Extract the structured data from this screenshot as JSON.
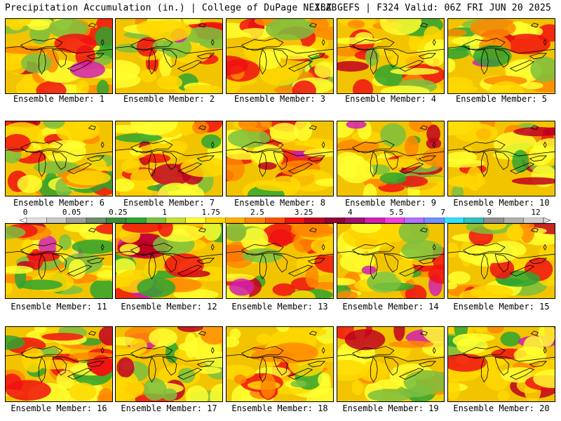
{
  "header": {
    "title_left": "Precipitation Accumulation (in.) | College of DuPage NEXLAB",
    "title_right": "18Z GEFS | F324 Valid: 06Z FRI JUN 20 2025"
  },
  "panels": [
    {
      "label": "Ensemble Member: 1"
    },
    {
      "label": "Ensemble Member: 2"
    },
    {
      "label": "Ensemble Member: 3"
    },
    {
      "label": "Ensemble Member: 4"
    },
    {
      "label": "Ensemble Member: 5"
    },
    {
      "label": "Ensemble Member: 6"
    },
    {
      "label": "Ensemble Member: 7"
    },
    {
      "label": "Ensemble Member: 8"
    },
    {
      "label": "Ensemble Member: 9"
    },
    {
      "label": "Ensemble Member: 10"
    },
    {
      "label": "Ensemble Member: 11"
    },
    {
      "label": "Ensemble Member: 12"
    },
    {
      "label": "Ensemble Member: 13"
    },
    {
      "label": "Ensemble Member: 14"
    },
    {
      "label": "Ensemble Member: 15"
    },
    {
      "label": "Ensemble Member: 16"
    },
    {
      "label": "Ensemble Member: 17"
    },
    {
      "label": "Ensemble Member: 18"
    },
    {
      "label": "Ensemble Member: 19"
    },
    {
      "label": "Ensemble Member: 20"
    }
  ],
  "colorbar": {
    "tick_labels": [
      "0",
      "0.05",
      "0.25",
      "1",
      "1.75",
      "2.5",
      "3.25",
      "4",
      "5.5",
      "7",
      "9",
      "12"
    ],
    "colors": [
      "#e0e0e0",
      "#c8c8c8",
      "#a0a0a0",
      "#6e8c6e",
      "#3a8c3a",
      "#2fa52f",
      "#7cc040",
      "#c8e030",
      "#ffff30",
      "#ffd800",
      "#ffb000",
      "#ff8800",
      "#ff5000",
      "#f01010",
      "#c00020",
      "#900030",
      "#a01070",
      "#d020b0",
      "#f040e0",
      "#b070ff",
      "#7090ff",
      "#30e0ff",
      "#30c0c0",
      "#909090",
      "#b0b0b0",
      "#d0d0d0"
    ]
  }
}
